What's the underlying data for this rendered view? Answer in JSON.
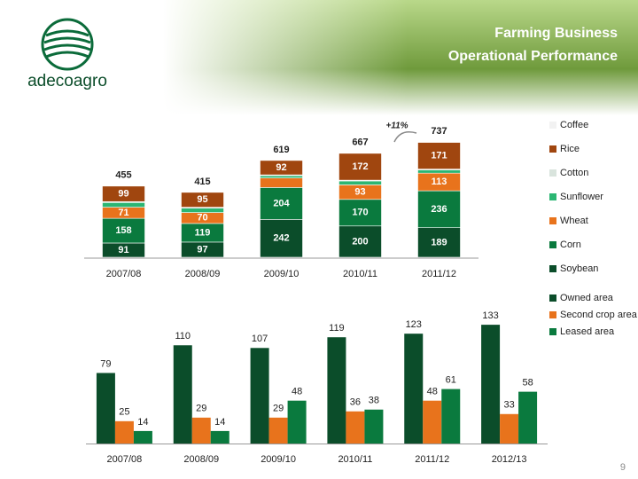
{
  "header": {
    "title_lines": [
      "Farming Business",
      "Operational Performance"
    ],
    "logo": "adecoagro"
  },
  "chart_data": [
    {
      "type": "stacked-bar",
      "categories": [
        "2007/08",
        "2008/09",
        "2009/10",
        "2010/11",
        "2011/12"
      ],
      "series": [
        {
          "name": "Soybean",
          "color": "#0b4d2a",
          "values": [
            91,
            97,
            242,
            200,
            189
          ]
        },
        {
          "name": "Corn",
          "color": "#0a7a3e",
          "values": [
            158,
            119,
            204,
            170,
            236
          ]
        },
        {
          "name": "Wheat",
          "color": "#e8731c",
          "values": [
            71,
            70,
            61,
            93,
            113
          ]
        },
        {
          "name": "Sunflower",
          "color": "#2bb673",
          "values": [
            30,
            28,
            15,
            25,
            20
          ]
        },
        {
          "name": "Cotton",
          "color": "#d9e4dd",
          "values": [
            6,
            6,
            5,
            5,
            6
          ]
        },
        {
          "name": "Rice",
          "color": "#a0460f",
          "values": [
            99,
            95,
            92,
            172,
            171
          ]
        },
        {
          "name": "Coffee",
          "color": "#f2f2f2",
          "values": [
            0,
            0,
            0,
            2,
            2
          ]
        }
      ],
      "totals": [
        455,
        415,
        619,
        667,
        737
      ],
      "annotation": "+11%",
      "ylim": [
        0,
        800
      ]
    },
    {
      "type": "grouped-bar",
      "categories": [
        "2007/08",
        "2008/09",
        "2009/10",
        "2010/11",
        "2011/12",
        "2012/13"
      ],
      "series": [
        {
          "name": "Owned area",
          "color": "#0b4d2a",
          "values": [
            79,
            110,
            107,
            119,
            123,
            133
          ]
        },
        {
          "name": "Second crop area",
          "color": "#e8731c",
          "values": [
            25,
            29,
            29,
            36,
            48,
            33
          ]
        },
        {
          "name": "Leased area",
          "color": "#0a7a3e",
          "values": [
            14,
            14,
            48,
            38,
            61,
            58
          ]
        }
      ],
      "ylim": [
        0,
        150
      ]
    }
  ],
  "page_number": "9"
}
